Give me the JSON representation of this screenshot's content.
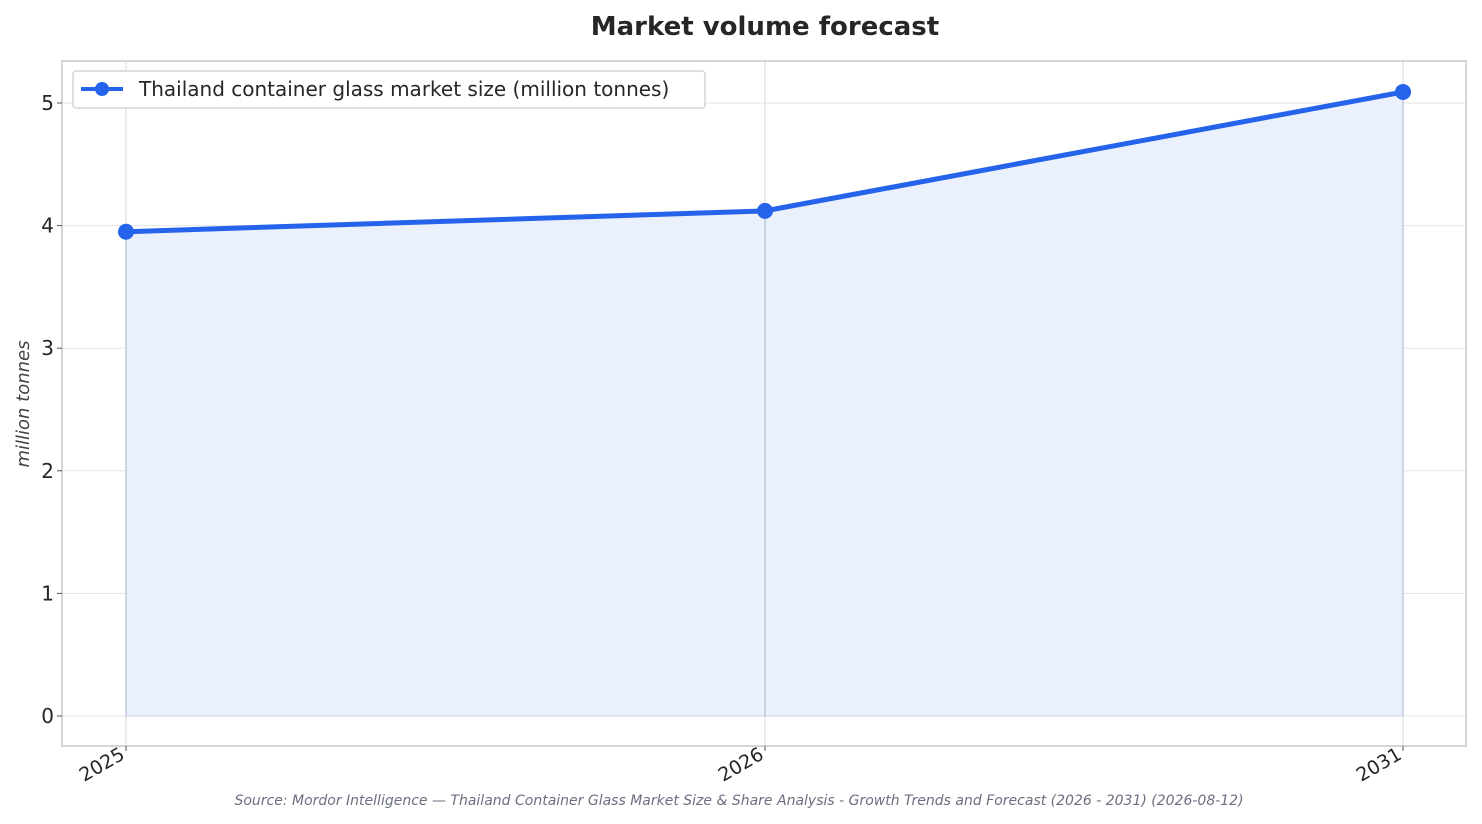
{
  "chart_data": {
    "type": "area",
    "title": "Market volume forecast",
    "ylabel": "million tonnes",
    "xlabel": "",
    "categories": [
      "2025",
      "2026",
      "2031"
    ],
    "series": [
      {
        "name": "Thailand container glass market size (million tonnes)",
        "values": [
          3.95,
          4.12,
          5.09
        ]
      }
    ],
    "ylim": [
      -0.25,
      5.35
    ],
    "yticks": [
      "0",
      "1",
      "2",
      "3",
      "4",
      "5"
    ],
    "grid": true,
    "legend_position": "top-left",
    "colors": {
      "line": "#2563eb",
      "fill": "#eaf0fc",
      "grid": "#e6e6e6",
      "frame": "#c8c8c8"
    },
    "source": "Source: Mordor Intelligence — Thailand Container Glass Market Size & Share Analysis - Growth Trends and Forecast (2026 - 2031) (2026-08-12)"
  }
}
